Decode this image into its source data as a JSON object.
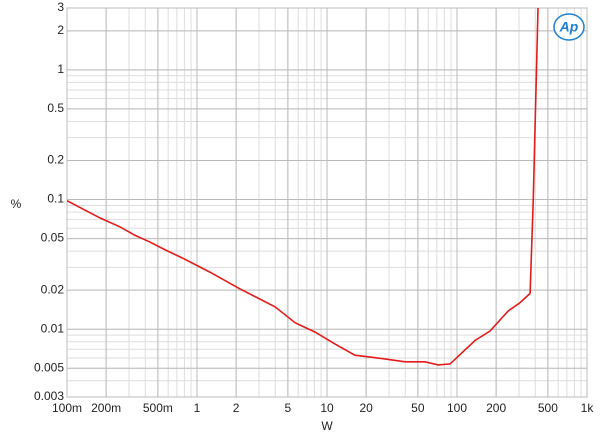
{
  "chart_data": {
    "type": "line",
    "x_label": "W",
    "y_label": "%",
    "logo": "Ap",
    "x_log": true,
    "y_log": true,
    "grid": true,
    "minor_grid": true,
    "xlim": [
      0.1,
      1000
    ],
    "ylim": [
      0.003,
      3
    ],
    "xticks": [
      {
        "value": 0.1,
        "label": "100m"
      },
      {
        "value": 0.2,
        "label": "200m"
      },
      {
        "value": 0.5,
        "label": "500m"
      },
      1,
      2,
      5,
      10,
      20,
      50,
      100,
      200,
      500,
      {
        "value": 1000,
        "label": "1k"
      }
    ],
    "yticks": [
      0.003,
      0.005,
      0.01,
      0.02,
      0.05,
      0.1,
      0.2,
      0.5,
      1,
      2,
      3
    ],
    "series": [
      {
        "color": "#e31b1b",
        "x": [
          0.1,
          0.18,
          0.256,
          0.333,
          0.435,
          0.567,
          0.768,
          1,
          1.26,
          2.15,
          3.98,
          5.7,
          8.1,
          11.5,
          16.4,
          21.4,
          27.9,
          39.8,
          56.8,
          71.6,
          88.6,
          106,
          138,
          180,
          247,
          305,
          365,
          386,
          420
        ],
        "values": [
          0.098,
          0.072,
          0.0615,
          0.053,
          0.047,
          0.041,
          0.0355,
          0.031,
          0.0275,
          0.0204,
          0.0149,
          0.0112,
          0.0095,
          0.0077,
          0.0063,
          0.0061,
          0.0059,
          0.0056,
          0.0056,
          0.0053,
          0.0054,
          0.0064,
          0.0082,
          0.0097,
          0.0138,
          0.016,
          0.0189,
          0.1,
          3
        ]
      }
    ]
  }
}
